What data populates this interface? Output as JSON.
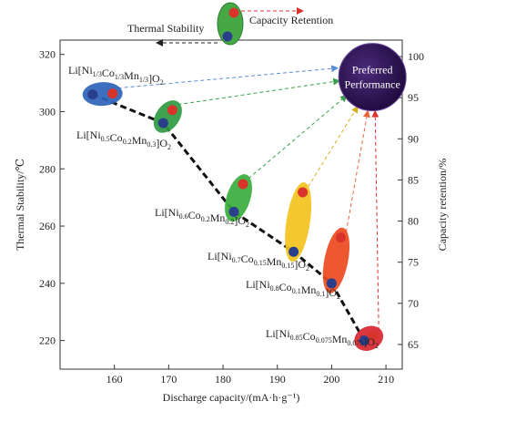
{
  "chart_data": {
    "type": "scatter",
    "xlabel": "Discharge capacity/(mA·h·g⁻¹)",
    "ylabel_left": "Thermal Stability/℃",
    "ylabel_right": "Capacity retention/%",
    "xlim": [
      150,
      213
    ],
    "ylim_left": [
      210,
      325
    ],
    "ylim_right": [
      62,
      102
    ],
    "xticks": [
      160,
      170,
      180,
      190,
      200,
      210
    ],
    "yticks_left": [
      220,
      240,
      260,
      280,
      300,
      320
    ],
    "yticks_right": [
      65,
      70,
      75,
      80,
      85,
      90,
      95,
      100
    ],
    "legend": {
      "thermal_label": "Thermal Stability",
      "capacity_label": "Capacity Retention"
    },
    "preferred": {
      "line1": "Preferred",
      "line2": "Performance",
      "x": 207.5,
      "y_right": 97.5
    },
    "materials": [
      {
        "formula": "Li[Ni1/3Co1/3Mn1/3]O2",
        "base": "Li[Ni",
        "parts": [
          [
            "Ni",
            "1/3"
          ],
          [
            "Co",
            "1/3"
          ],
          [
            "Mn",
            "1/3"
          ]
        ],
        "color": "#2e63b8",
        "x": 160,
        "thermal": 306,
        "retention": 95.5
      },
      {
        "formula": "Li[Ni0.5Co0.2Mn0.3]O2",
        "parts": [
          [
            "Ni",
            "0.5"
          ],
          [
            "Co",
            "0.2"
          ],
          [
            "Mn",
            "0.3"
          ]
        ],
        "color": "#2f9a41",
        "x": 170,
        "thermal": 296,
        "retention": 93.5
      },
      {
        "formula": "Li[Ni0.6Co0.2Mn0.2]O2",
        "parts": [
          [
            "Ni",
            "0.6"
          ],
          [
            "Co",
            "0.2"
          ],
          [
            "Mn",
            "0.2"
          ]
        ],
        "color": "#3bae3d",
        "x": 183,
        "thermal": 265,
        "retention": 84.5
      },
      {
        "formula": "Li[Ni0.7Co0.15Mn0.15]O2",
        "parts": [
          [
            "Ni",
            "0.7"
          ],
          [
            "Co",
            "0.15"
          ],
          [
            "Mn",
            "0.15"
          ]
        ],
        "color": "#f2c21b",
        "x": 194,
        "thermal": 251,
        "retention": 83.5
      },
      {
        "formula": "Li[Ni0.8Co0.1Mn0.1]O2",
        "parts": [
          [
            "Ni",
            "0.8"
          ],
          [
            "Co",
            "0.1"
          ],
          [
            "Mn",
            "0.1"
          ]
        ],
        "color": "#ec4a1e",
        "x": 201,
        "thermal": 240,
        "retention": 78
      },
      {
        "formula": "Li[Ni0.85Co0.075Mn0.075]O2",
        "parts": [
          [
            "Ni",
            "0.85"
          ],
          [
            "Co",
            "0.075"
          ],
          [
            "Mn",
            "0.075"
          ]
        ],
        "color": "#d8262f",
        "x": 207,
        "thermal": 220,
        "retention": 66
      }
    ],
    "colors": {
      "thermal_dot": "#2a3f8c",
      "retention_dot": "#d9342b",
      "preferred_fill": "#2b0f4f",
      "trend_line": "#111111"
    }
  }
}
